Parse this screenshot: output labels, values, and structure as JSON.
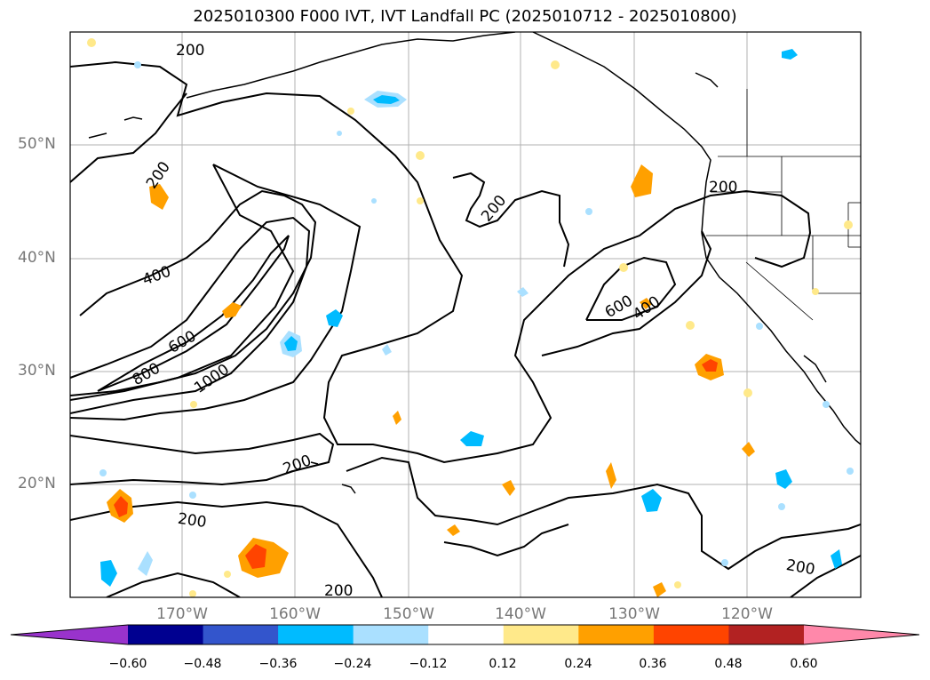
{
  "title": "2025010300 F000 IVT, IVT Landfall PC (2025010712 - 2025010800)",
  "lat_labels": [
    "50°N",
    "40°N",
    "30°N",
    "20°N"
  ],
  "lon_labels": [
    "170°W",
    "160°W",
    "150°W",
    "140°W",
    "130°W",
    "120°W"
  ],
  "contour_labels": [
    "200",
    "200",
    "200",
    "400",
    "600",
    "800",
    "1000",
    "200",
    "600",
    "400",
    "200",
    "200",
    "200",
    "200"
  ],
  "colorbar": {
    "colors": [
      "#9933cc",
      "#000090",
      "#3355cc",
      "#00bbff",
      "#aae0ff",
      "#ffffff",
      "#ffe98a",
      "#ffa000",
      "#ff4400",
      "#b22222",
      "#ff88aa"
    ],
    "tick_labels": [
      "−0.60",
      "−0.48",
      "−0.36",
      "−0.24",
      "−0.12",
      "0.12",
      "0.24",
      "0.36",
      "0.48",
      "0.60"
    ]
  }
}
